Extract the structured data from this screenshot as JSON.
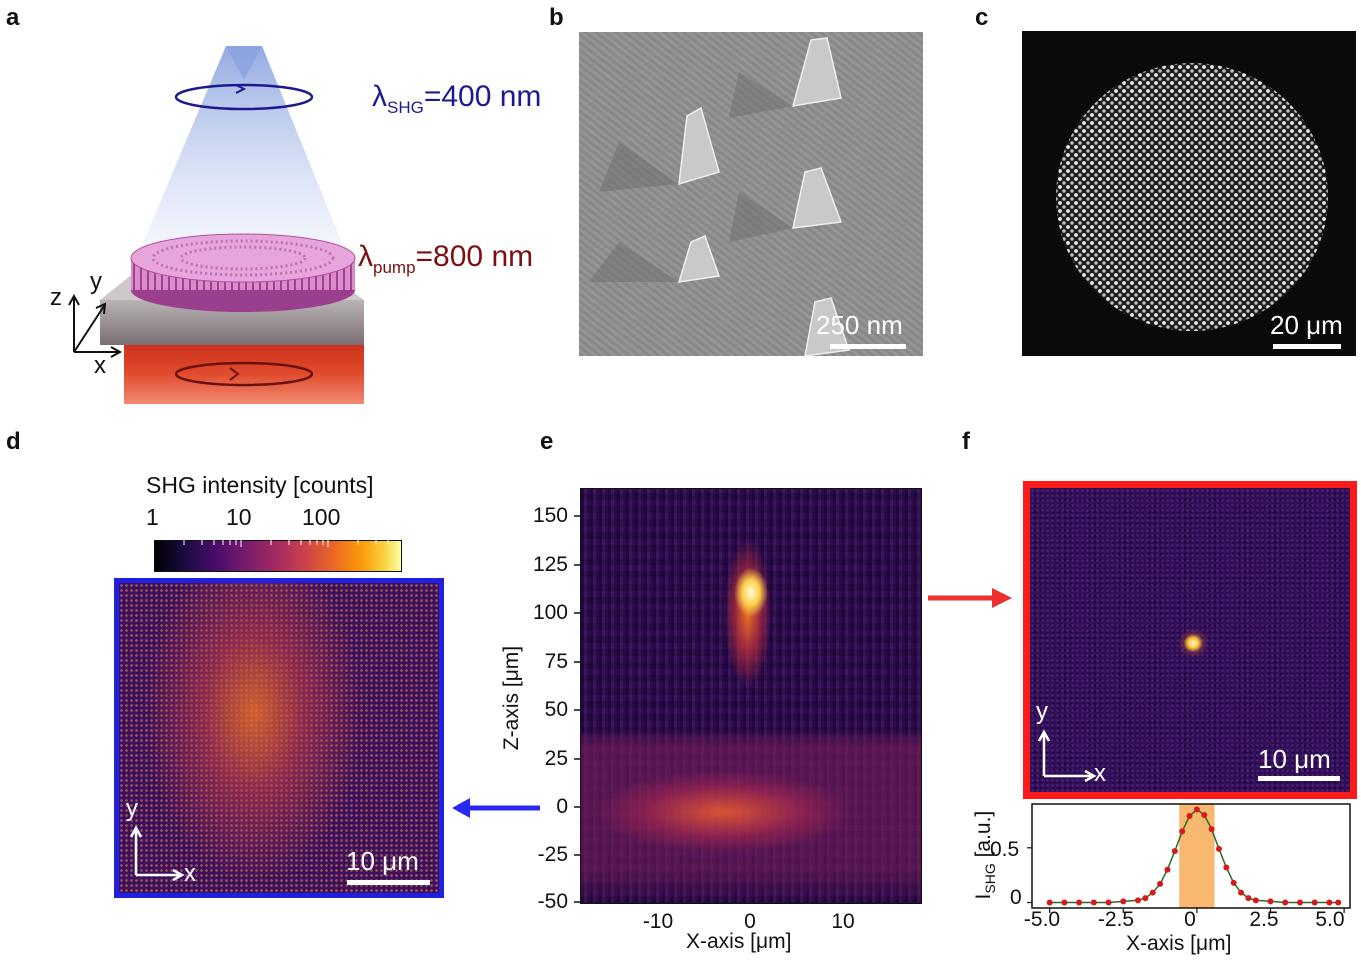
{
  "figure": {
    "panel_labels": [
      "a",
      "b",
      "c",
      "d",
      "e",
      "f"
    ],
    "panel_a": {
      "shg_symbol": "λ",
      "shg_subscript": "SHG",
      "shg_value": "=400 nm",
      "pump_symbol": "λ",
      "pump_subscript": "pump",
      "pump_value": "=800 nm",
      "axis_z": "z",
      "axis_y": "y",
      "axis_x": "x",
      "colors": {
        "shg": "#1f1a8c",
        "pump": "#7a1010"
      }
    },
    "panel_b": {
      "scale_bar": "250 nm"
    },
    "panel_c": {
      "scale_bar": "20 μm"
    },
    "panel_d": {
      "colorbar_title": "SHG intensity [counts]",
      "colorbar_ticks": [
        "1",
        "10",
        "100"
      ],
      "axis_y": "y",
      "axis_x": "x",
      "scale_bar": "10 μm",
      "frame_color": "#2020e0"
    },
    "panel_e": {
      "ylabel": "Z-axis [μm]",
      "xlabel": "X-axis [μm]",
      "yticks": [
        "150",
        "125",
        "100",
        "75",
        "50",
        "25",
        "0",
        "-25",
        "-50"
      ],
      "xticks": [
        "-10",
        "0",
        "10"
      ]
    },
    "panel_f": {
      "axis_y": "y",
      "axis_x": "x",
      "scale_bar": "10 μm",
      "frame_color": "#ff1a1a",
      "plot_ylabel_main": "I",
      "plot_ylabel_sub": "SHG",
      "plot_ylabel_unit": " [a.u.]",
      "plot_xlabel": "X-axis [μm]",
      "plot_yticks": [
        "0.5",
        "0"
      ],
      "plot_xticks": [
        "-5.0",
        "-2.5",
        "0",
        "2.5",
        "5.0"
      ]
    }
  },
  "chart_data": [
    {
      "type": "heatmap",
      "panel": "e",
      "title": "",
      "xlabel": "X-axis [μm]",
      "ylabel": "Z-axis [μm]",
      "xlim": [
        -18,
        18
      ],
      "ylim": [
        -50,
        160
      ],
      "xticks": [
        -10,
        0,
        10
      ],
      "yticks": [
        -50,
        -25,
        0,
        25,
        50,
        75,
        100,
        125,
        150
      ],
      "colormap": "inferno",
      "features": [
        {
          "name": "focus",
          "x": 0,
          "z": 113,
          "intensity": "max"
        },
        {
          "name": "surface-layer",
          "x_range": [
            -12,
            8
          ],
          "z_range": [
            -15,
            20
          ],
          "intensity": "medium"
        }
      ]
    },
    {
      "type": "scatter",
      "panel": "f",
      "xlabel": "X-axis [μm]",
      "ylabel": "I_SHG [a.u.]",
      "xlim": [
        -5.6,
        5.2
      ],
      "ylim": [
        -0.05,
        0.9
      ],
      "xticks": [
        -5.0,
        -2.5,
        0,
        2.5,
        5.0
      ],
      "yticks": [
        0,
        0.5
      ],
      "highlight_band": [
        -0.6,
        0.6
      ],
      "series": [
        {
          "name": "SHG profile",
          "x": [
            -5.0,
            -4.5,
            -4.0,
            -3.5,
            -3.0,
            -2.5,
            -2.0,
            -1.75,
            -1.5,
            -1.25,
            -1.0,
            -0.75,
            -0.5,
            -0.25,
            0.0,
            0.25,
            0.5,
            0.75,
            1.0,
            1.25,
            1.5,
            1.75,
            2.0,
            2.5,
            3.0,
            3.5,
            4.0,
            4.5,
            4.8
          ],
          "values": [
            0.0,
            0.0,
            0.0,
            0.0,
            0.0,
            0.01,
            0.02,
            0.04,
            0.09,
            0.17,
            0.3,
            0.47,
            0.65,
            0.79,
            0.85,
            0.8,
            0.67,
            0.49,
            0.32,
            0.18,
            0.09,
            0.04,
            0.02,
            0.01,
            0.0,
            0.0,
            0.0,
            0.0,
            0.0
          ]
        }
      ]
    }
  ]
}
